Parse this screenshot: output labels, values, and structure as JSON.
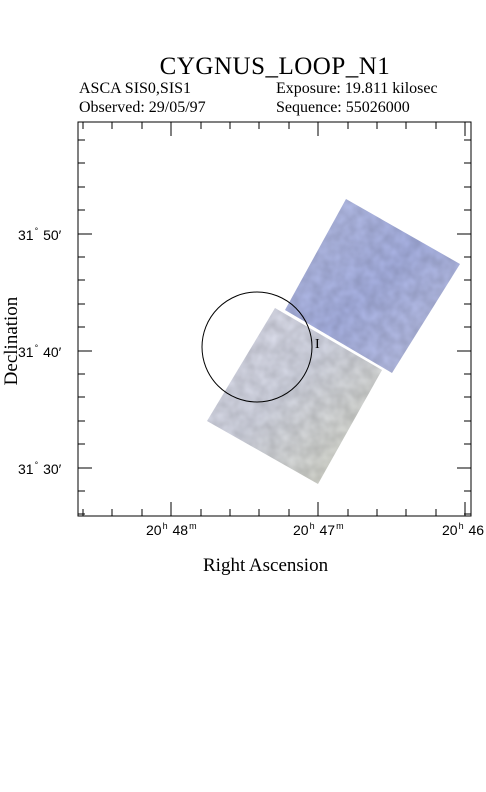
{
  "header": {
    "title": "CYGNUS_LOOP_N1",
    "instrument": "ASCA SIS0,SIS1",
    "exposure": "Exposure: 19.811 kilosec",
    "observed": "Observed: 29/05/97",
    "sequence": "Sequence: 55026000"
  },
  "axes": {
    "xlabel": "Right Ascension",
    "ylabel": "Declination",
    "ra_ticks": [
      {
        "h": "20",
        "m": "48",
        "label_h": "20",
        "label_m": "m"
      },
      {
        "h": "20",
        "m": "47"
      },
      {
        "h": "20",
        "m": "46"
      }
    ],
    "dec_ticks": [
      {
        "deg": "31",
        "min": "50"
      },
      {
        "deg": "31",
        "min": "40"
      },
      {
        "deg": "31",
        "min": "30"
      }
    ]
  },
  "image": {
    "colors": {
      "upper_field": "#b3bde8",
      "lower_field": "#d9dccf",
      "frame": "#000000"
    },
    "source_marker": "I"
  }
}
